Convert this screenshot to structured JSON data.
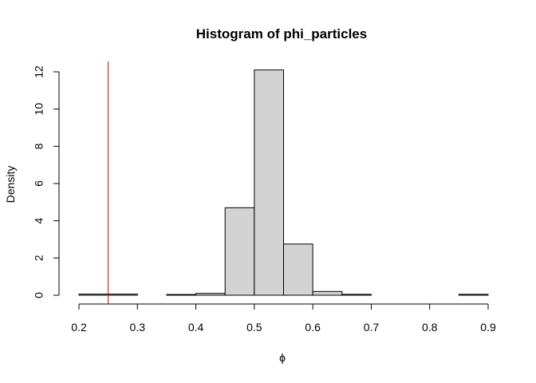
{
  "chart_data": {
    "type": "bar",
    "title": "Histogram of phi_particles",
    "xlabel": "ϕ",
    "ylabel": "Density",
    "xlim": [
      0.2,
      0.9
    ],
    "ylim": [
      0,
      12
    ],
    "bin_width": 0.05,
    "bins": [
      {
        "start": 0.2,
        "end": 0.25,
        "density": 0.06
      },
      {
        "start": 0.25,
        "end": 0.3,
        "density": 0.06
      },
      {
        "start": 0.3,
        "end": 0.35,
        "density": 0.0
      },
      {
        "start": 0.35,
        "end": 0.4,
        "density": 0.04
      },
      {
        "start": 0.4,
        "end": 0.45,
        "density": 0.1
      },
      {
        "start": 0.45,
        "end": 0.5,
        "density": 4.7
      },
      {
        "start": 0.5,
        "end": 0.55,
        "density": 12.1
      },
      {
        "start": 0.55,
        "end": 0.6,
        "density": 2.75
      },
      {
        "start": 0.6,
        "end": 0.65,
        "density": 0.2
      },
      {
        "start": 0.65,
        "end": 0.7,
        "density": 0.05
      },
      {
        "start": 0.7,
        "end": 0.75,
        "density": 0.0
      },
      {
        "start": 0.75,
        "end": 0.8,
        "density": 0.0
      },
      {
        "start": 0.8,
        "end": 0.85,
        "density": 0.0
      },
      {
        "start": 0.85,
        "end": 0.9,
        "density": 0.05
      }
    ],
    "x_ticks": [
      "0.2",
      "0.3",
      "0.4",
      "0.5",
      "0.6",
      "0.7",
      "0.8",
      "0.9"
    ],
    "y_ticks": [
      "0",
      "2",
      "4",
      "6",
      "8",
      "10",
      "12"
    ],
    "reference_line": {
      "x": 0.25,
      "color": "#cc0000"
    },
    "bar_fill": "#d3d3d3",
    "bar_stroke": "#000000",
    "grid": false,
    "legend": "none"
  }
}
